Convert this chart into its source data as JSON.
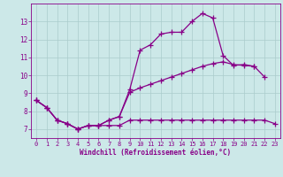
{
  "title": "",
  "xlabel": "Windchill (Refroidissement éolien,°C)",
  "background_color": "#cce8e8",
  "line_color": "#880088",
  "grid_color": "#aacccc",
  "x_ticks": [
    0,
    1,
    2,
    3,
    4,
    5,
    6,
    7,
    8,
    9,
    10,
    11,
    12,
    13,
    14,
    15,
    16,
    17,
    18,
    19,
    20,
    21,
    22,
    23
  ],
  "y_ticks": [
    7,
    8,
    9,
    10,
    11,
    12,
    13
  ],
  "xlim": [
    -0.5,
    23.5
  ],
  "ylim": [
    6.5,
    14.0
  ],
  "series": {
    "max": [
      8.6,
      8.2,
      7.5,
      7.3,
      7.0,
      7.2,
      7.2,
      7.5,
      7.7,
      9.2,
      11.4,
      11.7,
      12.3,
      12.4,
      12.4,
      13.0,
      13.45,
      13.2,
      11.1,
      10.55,
      10.6,
      10.5,
      9.9,
      null
    ],
    "mean": [
      8.6,
      8.2,
      7.5,
      7.3,
      7.0,
      7.2,
      7.2,
      7.5,
      7.7,
      9.05,
      9.3,
      9.5,
      9.7,
      9.9,
      10.1,
      10.3,
      10.5,
      10.65,
      10.75,
      10.6,
      10.55,
      10.5,
      null,
      null
    ],
    "min": [
      8.6,
      8.2,
      7.5,
      7.3,
      7.0,
      7.2,
      7.2,
      7.2,
      7.2,
      7.5,
      7.5,
      7.5,
      7.5,
      7.5,
      7.5,
      7.5,
      7.5,
      7.5,
      7.5,
      7.5,
      7.5,
      7.5,
      7.5,
      7.3
    ]
  },
  "marker": "+",
  "markersize": 4,
  "linewidth": 0.9
}
